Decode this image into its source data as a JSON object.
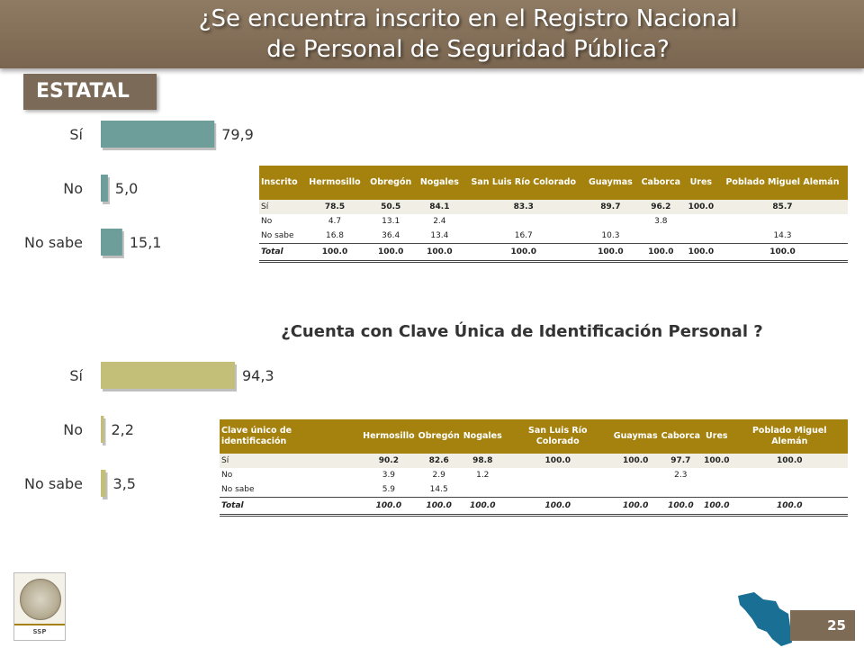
{
  "title": {
    "line1": "¿Se encuentra inscrito en el Registro Nacional",
    "line2": "de Personal de Seguridad Pública?"
  },
  "badge": "ESTATAL",
  "subtitle": "¿Cuenta con Clave Única de Identificación Personal ?",
  "chart_data": [
    {
      "type": "bar",
      "orientation": "horizontal",
      "categories": [
        "Sí",
        "No",
        "No sabe"
      ],
      "values": [
        79.9,
        5.0,
        15.1
      ],
      "value_labels": [
        "79,9",
        "5,0",
        "15,1"
      ],
      "xlim": [
        0,
        100
      ],
      "color": "#6d9e9a",
      "grid": false
    },
    {
      "type": "bar",
      "orientation": "horizontal",
      "categories": [
        "Sí",
        "No",
        "No sabe"
      ],
      "values": [
        94.3,
        2.2,
        3.5
      ],
      "value_labels": [
        "94,3",
        "2,2",
        "3,5"
      ],
      "xlim": [
        0,
        100
      ],
      "color": "#c3bf79",
      "grid": false
    },
    {
      "type": "table",
      "columns": [
        "Inscrito",
        "Hermosillo",
        "Obregón",
        "Nogales",
        "San Luis Río Colorado",
        "Guaymas",
        "Caborca",
        "Ures",
        "Poblado Miguel Alemán"
      ],
      "rows": [
        [
          "Sí",
          "78.5",
          "50.5",
          "84.1",
          "83.3",
          "89.7",
          "96.2",
          "100.0",
          "85.7"
        ],
        [
          "No",
          "4.7",
          "13.1",
          "2.4",
          "",
          "",
          "3.8",
          "",
          ""
        ],
        [
          "No sabe",
          "16.8",
          "36.4",
          "13.4",
          "16.7",
          "10.3",
          "",
          "",
          "14.3"
        ],
        [
          "Total",
          "100.0",
          "100.0",
          "100.0",
          "100.0",
          "100.0",
          "100.0",
          "100.0",
          "100.0"
        ]
      ]
    },
    {
      "type": "table",
      "columns": [
        "Clave único de identificación",
        "Hermosillo",
        "Obregón",
        "Nogales",
        "San Luis Río Colorado",
        "Guaymas",
        "Caborca",
        "Ures",
        "Poblado Miguel Alemán"
      ],
      "rows": [
        [
          "Sí",
          "90.2",
          "82.6",
          "98.8",
          "100.0",
          "100.0",
          "97.7",
          "100.0",
          "100.0"
        ],
        [
          "No",
          "3.9",
          "2.9",
          "1.2",
          "",
          "",
          "2.3",
          "",
          ""
        ],
        [
          "No sabe",
          "5.9",
          "14.5",
          "",
          "",
          "",
          "",
          "",
          ""
        ],
        [
          "Total",
          "100.0",
          "100.0",
          "100.0",
          "100.0",
          "100.0",
          "100.0",
          "100.0",
          "100.0"
        ]
      ]
    }
  ],
  "logo_text": "SSP",
  "page_number": "25",
  "colors": {
    "banner": "#7f6b54",
    "table_header": "#a5820e",
    "map": "#1a6f94"
  }
}
